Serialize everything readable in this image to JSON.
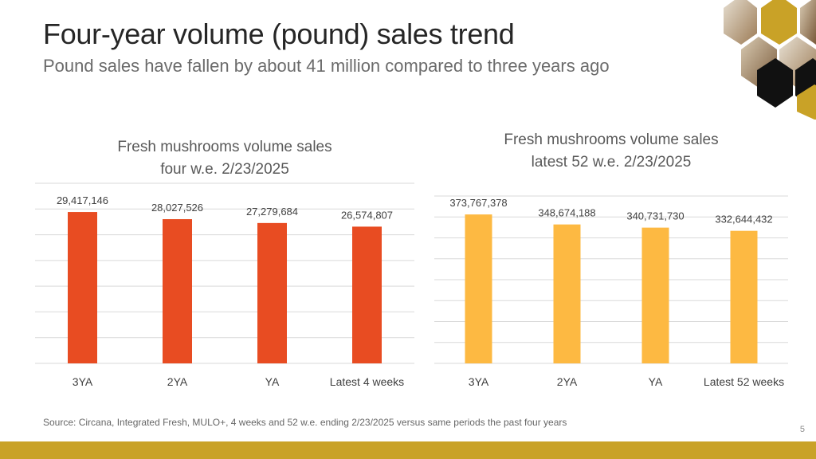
{
  "title": "Four-year volume (pound) sales trend",
  "subtitle": "Pound sales have fallen by about 41 million compared to three years ago",
  "source": "Source: Circana, Integrated Fresh, MULO+, 4 weeks and 52 w.e. ending 2/23/2025 versus same periods the past four years",
  "page_number": "5",
  "colors": {
    "left_bars": "#e84c22",
    "right_bars": "#fdb942",
    "gridline": "#d9d9d9",
    "bottom_bar": "#c9a227"
  },
  "chart_data": [
    {
      "type": "bar",
      "title_line1": "Fresh mushrooms volume sales",
      "title_line2": "four w.e. 2/23/2025",
      "categories": [
        "3YA",
        "2YA",
        "YA",
        "Latest 4 weeks"
      ],
      "values": [
        29417146,
        28027526,
        27279684,
        26574807
      ],
      "value_labels": [
        "29,417,146",
        "28,027,526",
        "27,279,684",
        "26,574,807"
      ],
      "ylim": [
        0,
        35000000
      ],
      "grid": true
    },
    {
      "type": "bar",
      "title_line1": "Fresh mushrooms volume sales",
      "title_line2": "latest 52 w.e. 2/23/2025",
      "categories": [
        "3YA",
        "2YA",
        "YA",
        "Latest 52 weeks"
      ],
      "values": [
        373767378,
        348674188,
        340731730,
        332644432
      ],
      "value_labels": [
        "373,767,378",
        "348,674,188",
        "340,731,730",
        "332,644,432"
      ],
      "ylim": [
        0,
        420000000
      ],
      "grid": true
    }
  ]
}
